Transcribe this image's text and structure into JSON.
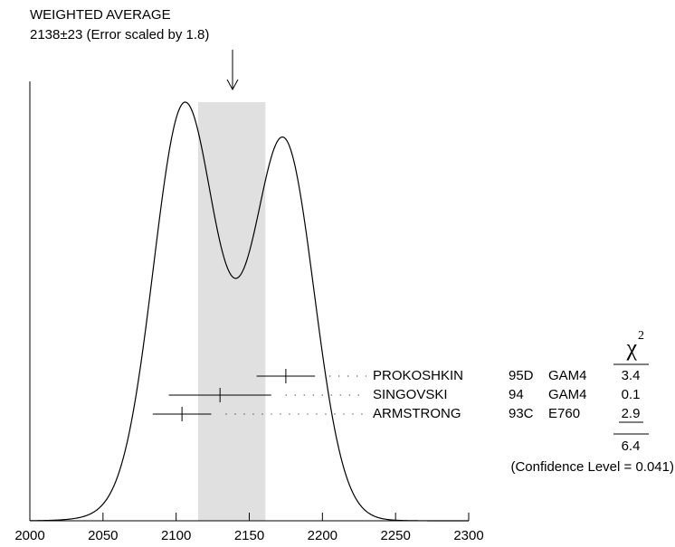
{
  "chart_data": {
    "type": "ideogram",
    "title": "WEIGHTED AVERAGE",
    "average": {
      "value": 2138,
      "error": 23,
      "label": "2138±23 (Error scaled by 1.8)"
    },
    "xlim": [
      2000,
      2300
    ],
    "xticks": [
      2000,
      2050,
      2100,
      2150,
      2200,
      2250,
      2300
    ],
    "band_color": "#e0e0e0",
    "curve_color": "#000000",
    "chi2_header": {
      "symbol": "χ",
      "power": "2"
    },
    "measurements": [
      {
        "name": "PROKOSHKIN",
        "year": "95D",
        "technique": "GAM4",
        "value": 2175,
        "error": 20,
        "chi2": 3.4
      },
      {
        "name": "SINGOVSKI",
        "year": "94",
        "technique": "GAM4",
        "value": 2130,
        "error": 35,
        "chi2": 0.1
      },
      {
        "name": "ARMSTRONG",
        "year": "93C",
        "technique": "E760",
        "value": 2104,
        "error": 20,
        "chi2": 2.9
      }
    ],
    "chi2_total": 6.4,
    "confidence_level": "(Confidence Level = 0.041)"
  }
}
